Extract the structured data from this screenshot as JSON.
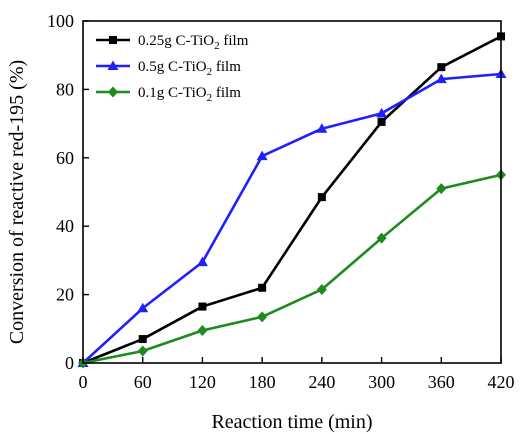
{
  "chart_data": {
    "type": "line",
    "xlabel": "Reaction time (min)",
    "ylabel": "Conversion of reactive red-195 (%)",
    "xlim": [
      0,
      420
    ],
    "ylim": [
      0,
      100
    ],
    "x_ticks": [
      0,
      60,
      120,
      180,
      240,
      300,
      360,
      420
    ],
    "y_ticks": [
      0,
      20,
      40,
      60,
      80,
      100
    ],
    "grid": false,
    "legend_position": "top-left",
    "x": [
      0,
      60,
      120,
      180,
      240,
      300,
      360,
      420
    ],
    "series": [
      {
        "name_prefix": "0.25g C-TiO",
        "name_subscript": "2",
        "name_suffix": " film",
        "color": "#000000",
        "marker": "square",
        "values": [
          0,
          7,
          16.5,
          22,
          48.5,
          70.5,
          86.5,
          95.5
        ]
      },
      {
        "name_prefix": "0.5g C-TiO",
        "name_subscript": "2",
        "name_suffix": " film",
        "color": "#1f1fff",
        "marker": "triangle",
        "values": [
          0,
          16,
          29.5,
          60.5,
          68.5,
          73,
          83,
          84.5
        ]
      },
      {
        "name_prefix": "0.1g C-TiO",
        "name_subscript": "2",
        "name_suffix": " film",
        "color": "#1e8b1e",
        "marker": "diamond",
        "values": [
          0,
          3.5,
          9.5,
          13.5,
          21.5,
          36.5,
          51,
          55
        ]
      }
    ]
  }
}
